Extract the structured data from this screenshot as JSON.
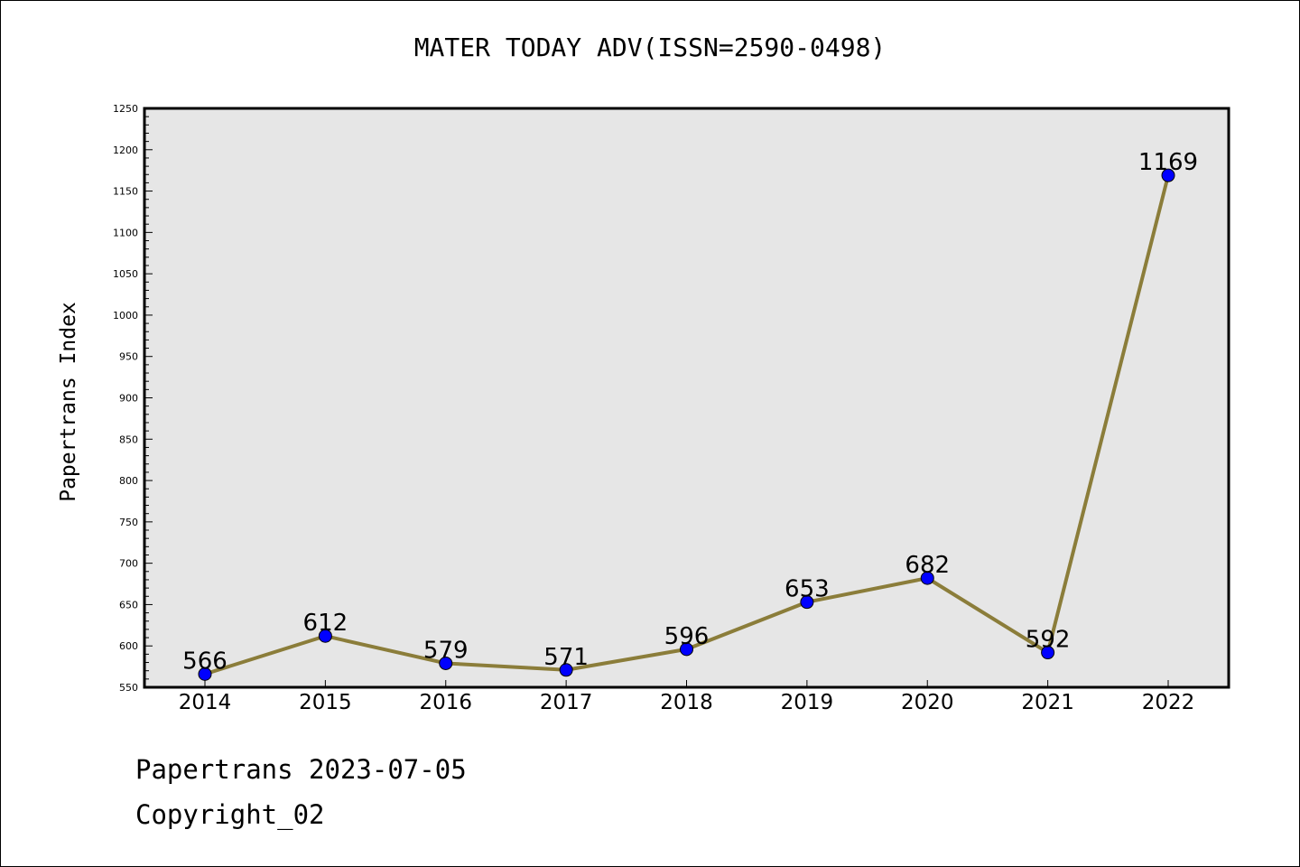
{
  "chart_data": {
    "type": "line",
    "title": "MATER TODAY ADV(ISSN=2590-0498)",
    "ylabel": "Papertrans Index",
    "xlabel": "",
    "categories": [
      "2014",
      "2015",
      "2016",
      "2017",
      "2018",
      "2019",
      "2020",
      "2021",
      "2022"
    ],
    "series": [
      {
        "values": [
          566,
          612,
          579,
          571,
          596,
          653,
          682,
          592,
          1169
        ]
      }
    ],
    "ylim": [
      550,
      1250
    ],
    "yticks": [
      550,
      600,
      650,
      700,
      750,
      800,
      850,
      900,
      950,
      1000,
      1050,
      1100,
      1150,
      1200,
      1250
    ],
    "grid": false,
    "line_color": "#8B7D3A",
    "marker_color": "#0000FF",
    "plot_background": "#E6E6E6"
  },
  "footer": {
    "line1": "Papertrans 2023-07-05",
    "line2": "Copyright_02"
  }
}
